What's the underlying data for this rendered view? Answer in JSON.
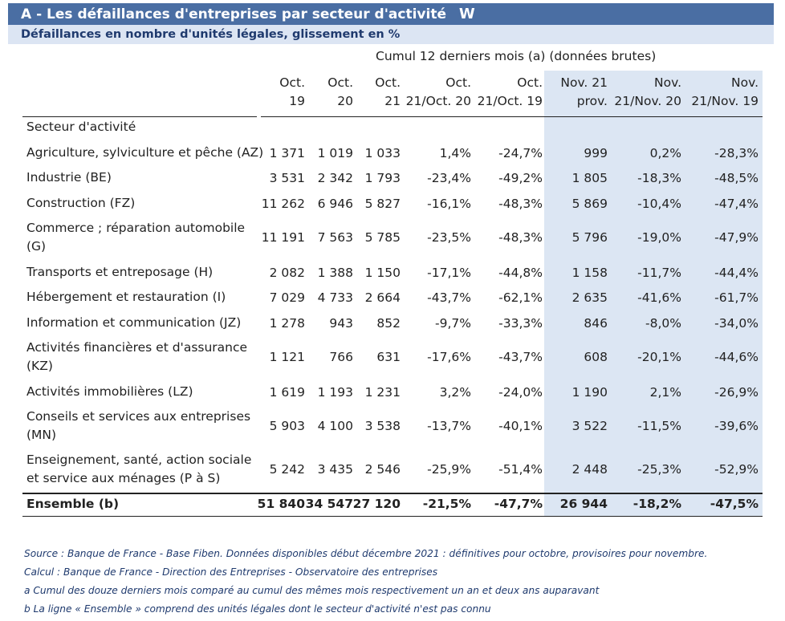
{
  "title": "A - Les défaillances d'entreprises par secteur d'activité",
  "subtitle": "Défaillances en nombre d'unités légales, glissement en %",
  "group_header": "Cumul 12 derniers mois (a) (données brutes)",
  "columns": [
    [
      "Oct.",
      "19"
    ],
    [
      "Oct.",
      "20"
    ],
    [
      "Oct.",
      "21"
    ],
    [
      "Oct.",
      "21/Oct. 20"
    ],
    [
      "Oct.",
      "21/Oct. 19"
    ],
    [
      "Nov. 21",
      "prov."
    ],
    [
      "Nov.",
      "21/Nov. 20"
    ],
    [
      "Nov.",
      "21/Nov. 19"
    ]
  ],
  "sector_header": "Secteur d'activité",
  "rows": [
    {
      "label": [
        "Agriculture, sylviculture et pêche (AZ)"
      ],
      "values": [
        "1 371",
        "1 019",
        "1 033",
        "1,4%",
        "-24,7%",
        "999",
        "0,2%",
        "-28,3%"
      ]
    },
    {
      "label": [
        "Industrie (BE)"
      ],
      "values": [
        "3 531",
        "2 342",
        "1 793",
        "-23,4%",
        "-49,2%",
        "1 805",
        "-18,3%",
        "-48,5%"
      ]
    },
    {
      "label": [
        "Construction (FZ)"
      ],
      "values": [
        "11 262",
        "6 946",
        "5 827",
        "-16,1%",
        "-48,3%",
        "5 869",
        "-10,4%",
        "-47,4%"
      ]
    },
    {
      "label": [
        "Commerce ; réparation automobile",
        "(G)"
      ],
      "values": [
        "11 191",
        "7 563",
        "5 785",
        "-23,5%",
        "-48,3%",
        "5 796",
        "-19,0%",
        "-47,9%"
      ]
    },
    {
      "label": [
        "Transports et entreposage (H)"
      ],
      "values": [
        "2 082",
        "1 388",
        "1 150",
        "-17,1%",
        "-44,8%",
        "1 158",
        "-11,7%",
        "-44,4%"
      ]
    },
    {
      "label": [
        "Hébergement et restauration (I)"
      ],
      "values": [
        "7 029",
        "4 733",
        "2 664",
        "-43,7%",
        "-62,1%",
        "2 635",
        "-41,6%",
        "-61,7%"
      ]
    },
    {
      "label": [
        "Information et communication (JZ)"
      ],
      "values": [
        "1 278",
        "943",
        "852",
        "-9,7%",
        "-33,3%",
        "846",
        "-8,0%",
        "-34,0%"
      ]
    },
    {
      "label": [
        "Activités financières et d'assurance",
        "(KZ)"
      ],
      "values": [
        "1 121",
        "766",
        "631",
        "-17,6%",
        "-43,7%",
        "608",
        "-20,1%",
        "-44,6%"
      ]
    },
    {
      "label": [
        "Activités immobilières (LZ)"
      ],
      "values": [
        "1 619",
        "1 193",
        "1 231",
        "3,2%",
        "-24,0%",
        "1 190",
        "2,1%",
        "-26,9%"
      ]
    },
    {
      "label": [
        "Conseils et services aux entreprises",
        "(MN)"
      ],
      "values": [
        "5 903",
        "4 100",
        "3 538",
        "-13,7%",
        "-40,1%",
        "3 522",
        "-11,5%",
        "-39,6%"
      ]
    },
    {
      "label": [
        "Enseignement, santé, action sociale",
        "et service aux ménages (P à S)"
      ],
      "values": [
        "5 242",
        "3 435",
        "2 546",
        "-25,9%",
        "-51,4%",
        "2 448",
        "-25,3%",
        "-52,9%"
      ]
    }
  ],
  "total": {
    "label": "Ensemble (b)",
    "values": [
      "51 840",
      "34 547",
      "27 120",
      "-21,5%",
      "-47,7%",
      "26 944",
      "-18,2%",
      "-47,5%"
    ]
  },
  "notes": [
    "Source : Banque de France - Base Fiben. Données disponibles début décembre 2021 : définitives pour octobre, provisoires pour novembre.",
    "Calcul : Banque de France - Direction des Entreprises - Observatoire des entreprises",
    "a Cumul des douze derniers mois comparé au cumul des mêmes mois respectivement un an et deux ans auparavant",
    "b La ligne « Ensemble » comprend des unités légales dont le secteur d'activité n'est pas connu"
  ],
  "colors": {
    "title_bar": "#4a6ea3",
    "subtitle_bar": "#dce5f3",
    "shaded_columns": "#dce6f3",
    "notes_text": "#1f3a6e"
  }
}
